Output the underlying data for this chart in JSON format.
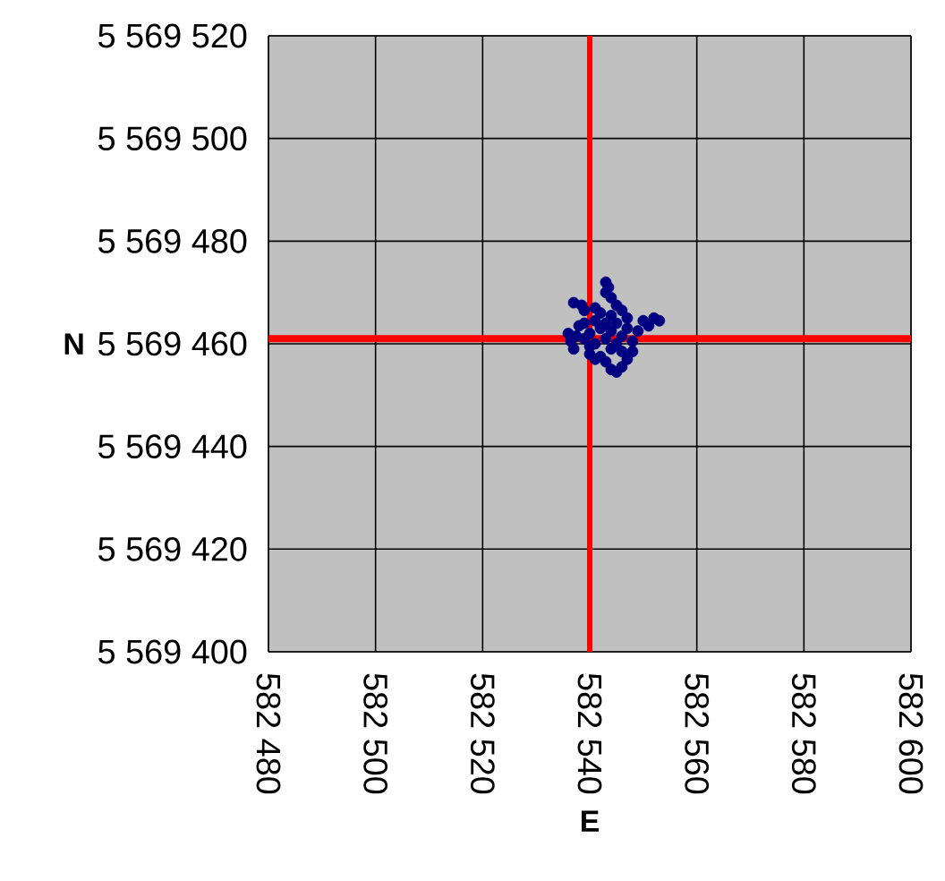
{
  "chart_data": {
    "type": "scatter",
    "xlabel": "E",
    "ylabel": "N",
    "xlim": [
      582480,
      582600
    ],
    "ylim": [
      5569400,
      5569520
    ],
    "xticks": [
      {
        "value": 582480,
        "label": "582 480"
      },
      {
        "value": 582500,
        "label": "582 500"
      },
      {
        "value": 582520,
        "label": "582 520"
      },
      {
        "value": 582540,
        "label": "582 540"
      },
      {
        "value": 582560,
        "label": "582 560"
      },
      {
        "value": 582580,
        "label": "582 580"
      },
      {
        "value": 582600,
        "label": "582 600"
      }
    ],
    "yticks": [
      {
        "value": 5569400,
        "label": "5 569 400"
      },
      {
        "value": 5569420,
        "label": "5 569 420"
      },
      {
        "value": 5569440,
        "label": "5 569 440"
      },
      {
        "value": 5569460,
        "label": "5 569 460"
      },
      {
        "value": 5569480,
        "label": "5 569 480"
      },
      {
        "value": 5569500,
        "label": "5 569 500"
      },
      {
        "value": 5569520,
        "label": "5 569 520"
      }
    ],
    "grid": true,
    "marker": "circle",
    "ref_lines": [
      {
        "axis": "x",
        "value": 582540,
        "color": "#ff0000"
      },
      {
        "axis": "y",
        "value": 5569461,
        "color": "#ff0000"
      }
    ],
    "series": [
      {
        "color": "#000080",
        "x": [
          582543,
          582543.5,
          582543,
          582544,
          582537,
          582538.5,
          582539,
          582541,
          582542,
          582545,
          582546,
          582544,
          582548,
          582550,
          582552,
          582553,
          582551,
          582549,
          582536,
          582536.5,
          582537,
          582537.5,
          582538,
          582539,
          582540,
          582541,
          582542,
          582543,
          582544,
          582545,
          582546,
          582547,
          582540,
          582542,
          582544,
          582546,
          582548,
          582539,
          582541,
          582543,
          582545,
          582547,
          582540,
          582541,
          582543,
          582544,
          582545,
          582546,
          582547,
          582548,
          582542
        ],
        "values": [
          5569472,
          5569471,
          5569470,
          5569469,
          5569468,
          5569467.5,
          5569466.5,
          5569467,
          5569466,
          5569467.5,
          5569466.5,
          5569465.5,
          null,
          5569464.5,
          5569465,
          5569464.5,
          5569463.5,
          5569462.5,
          5569462,
          5569460.5,
          5569459,
          5569461.5,
          5569463.5,
          5569464,
          5569462,
          5569460,
          5569463,
          5569461,
          5569462.5,
          5569460,
          5569461.5,
          5569463,
          5569459.5,
          null,
          5569459,
          5569458.5,
          5569460.5,
          5569461,
          5569464.5,
          5569464,
          5569464,
          5569465,
          5569458,
          5569457,
          5569456.5,
          5569455,
          5569454.5,
          5569455.5,
          5569457,
          5569458.5,
          5569457.5
        ]
      }
    ]
  }
}
